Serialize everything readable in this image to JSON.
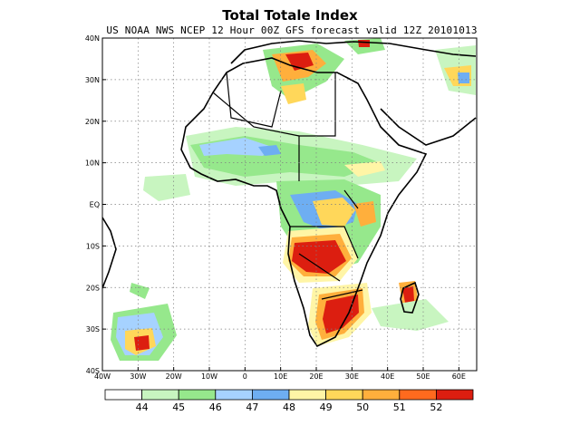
{
  "title": "Total Totale Index",
  "subtitle": "US NOAA NWS NCEP 12 Hour 00Z GFS forecast valid 12Z 20101013",
  "map": {
    "lon_range": [
      -40,
      65
    ],
    "lat_range": [
      -40,
      40
    ],
    "lon_ticks": [
      {
        "value": -40,
        "label": "40W"
      },
      {
        "value": -30,
        "label": "30W"
      },
      {
        "value": -20,
        "label": "20W"
      },
      {
        "value": -10,
        "label": "10W"
      },
      {
        "value": 0,
        "label": "0"
      },
      {
        "value": 10,
        "label": "10E"
      },
      {
        "value": 20,
        "label": "20E"
      },
      {
        "value": 30,
        "label": "30E"
      },
      {
        "value": 40,
        "label": "40E"
      },
      {
        "value": 50,
        "label": "50E"
      },
      {
        "value": 60,
        "label": "60E"
      }
    ],
    "lat_ticks": [
      {
        "value": 40,
        "label": "40N"
      },
      {
        "value": 30,
        "label": "30N"
      },
      {
        "value": 20,
        "label": "20N"
      },
      {
        "value": 10,
        "label": "10N"
      },
      {
        "value": 0,
        "label": "EQ"
      },
      {
        "value": -10,
        "label": "10S"
      },
      {
        "value": -20,
        "label": "20S"
      },
      {
        "value": -30,
        "label": "30S"
      },
      {
        "value": -40,
        "label": "40S"
      }
    ],
    "grid": true
  },
  "colorbar": {
    "labels": [
      "44",
      "45",
      "46",
      "47",
      "48",
      "49",
      "50",
      "51",
      "52"
    ],
    "colors": [
      "#ffffff",
      "#c8f5c0",
      "#96e88c",
      "#a6d2ff",
      "#6eaef2",
      "#fff5a6",
      "#ffd75a",
      "#ffaf3c",
      "#ff6a1e",
      "#dc1e10"
    ]
  }
}
